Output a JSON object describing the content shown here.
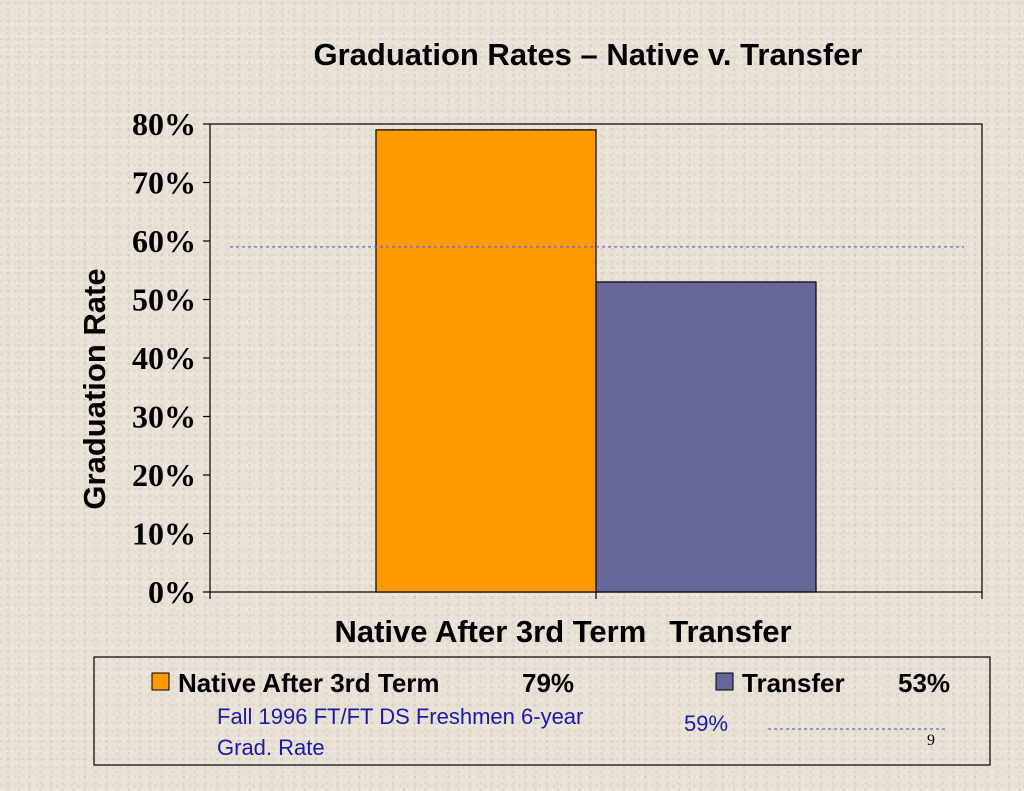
{
  "chart_data": {
    "type": "bar",
    "title": "Graduation Rates – Native v. Transfer",
    "ylabel": "Graduation Rate",
    "xlabel": "",
    "categories": [
      "Native After 3rd Term",
      "Transfer"
    ],
    "values": [
      79,
      53
    ],
    "colors": [
      "#ff9900",
      "#666699"
    ],
    "ylim": [
      0,
      80
    ],
    "yticks": [
      "0%",
      "10%",
      "20%",
      "30%",
      "40%",
      "50%",
      "60%",
      "70%",
      "80%"
    ],
    "reference_line": {
      "value": 59,
      "color": "#6666cc",
      "style": "dashed"
    },
    "grid": false
  },
  "legend": {
    "items": [
      {
        "label": "Native After 3rd Term",
        "value": "79%",
        "color": "#ff9900"
      },
      {
        "label": "Transfer",
        "value": "53%",
        "color": "#666699"
      }
    ],
    "note_line1": "Fall 1996 FT/FT DS Freshmen 6-year",
    "note_line2": "Grad. Rate",
    "note_value": "59%"
  },
  "slide": {
    "page_number": "9"
  }
}
